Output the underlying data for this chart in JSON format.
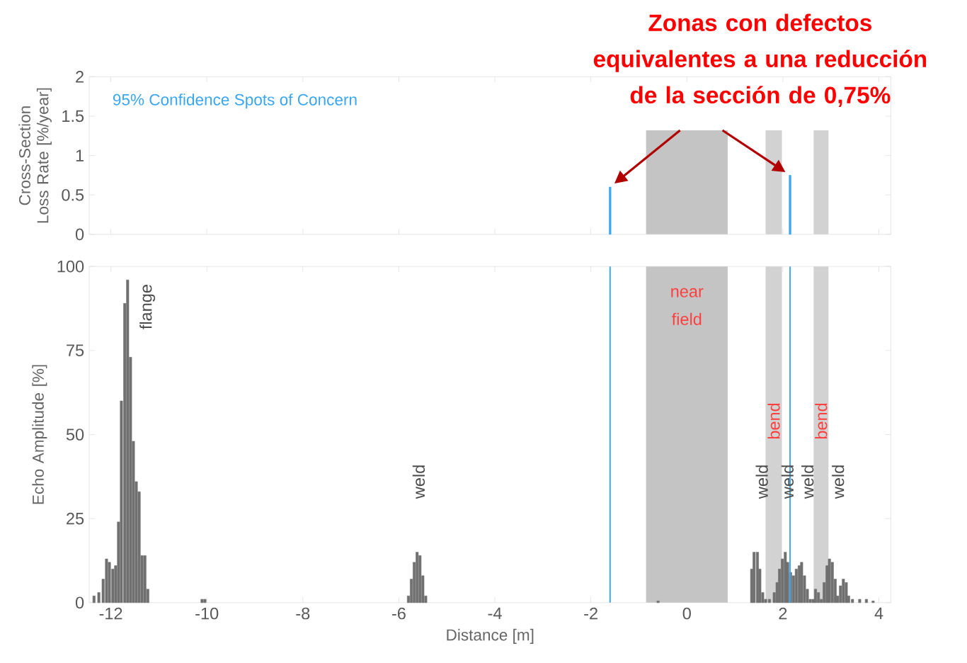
{
  "chart_data": [
    {
      "type": "bar",
      "ylabel": "Cross-Section Loss Rate [%/year]",
      "annotations": [
        "**Zonas con defectos equivalentes a una reducción de la sección de 0,75%**"
      ],
      "x": [
        -1.6,
        2.15
      ],
      "series": [
        {
          "name": "95% Confidence Spots of Concern",
          "color": "#3ba7f0",
          "values": [
            0.6,
            0.75
          ]
        }
      ],
      "xlim": [
        -12.45,
        4.25
      ],
      "ylim": [
        0,
        2
      ],
      "xticks": [
        -12,
        -10,
        -8,
        -6,
        -4,
        -2,
        0,
        2,
        4
      ],
      "yticks": [
        0,
        0.5,
        1,
        1.5,
        2
      ],
      "tick_labels": "y",
      "legend": "top left",
      "bands": [
        {
          "axis": "x",
          "from": -0.85,
          "to": 0.85,
          "color": "#c4c4c4"
        },
        {
          "axis": "x",
          "from": 1.64,
          "to": 1.98,
          "color": "#d2d2d2"
        },
        {
          "axis": "x",
          "from": 2.64,
          "to": 2.95,
          "color": "#d2d2d2"
        }
      ]
    },
    {
      "type": "bar",
      "xlabel": "Distance [m]",
      "ylabel": "Echo Amplitude [%]",
      "x": [
        -12.35,
        -12.25,
        -12.16,
        -12.09,
        -12.03,
        -11.96,
        -11.9,
        -11.84,
        -11.78,
        -11.71,
        -11.65,
        -11.59,
        -11.53,
        -11.47,
        -11.41,
        -11.35,
        -11.29,
        -11.23,
        -10.1,
        -10.04,
        -5.8,
        -5.74,
        -5.68,
        -5.62,
        -5.56,
        -5.5,
        -5.44,
        -0.6,
        1.35,
        1.4,
        1.47,
        1.52,
        1.58,
        1.64,
        1.72,
        1.82,
        1.88,
        1.93,
        1.99,
        2.05,
        2.1,
        2.16,
        2.22,
        2.28,
        2.34,
        2.39,
        2.45,
        2.51,
        2.57,
        2.63,
        2.68,
        2.74,
        2.8,
        2.86,
        2.92,
        2.97,
        3.03,
        3.09,
        3.14,
        3.2,
        3.26,
        3.32,
        3.37,
        3.45,
        3.6,
        3.74,
        3.88
      ],
      "values": [
        2,
        3,
        7,
        13,
        12,
        10,
        11,
        24,
        60,
        89,
        96,
        73,
        48,
        36,
        33,
        14,
        14,
        4,
        1,
        1,
        2,
        7,
        12,
        15,
        14,
        8,
        2,
        0.5,
        10,
        15,
        15,
        10,
        3,
        1,
        1,
        3,
        6,
        10,
        13,
        15,
        12,
        9,
        8,
        10,
        11,
        12,
        8,
        4,
        1,
        1,
        4,
        3,
        1,
        6,
        11,
        13,
        12,
        7,
        2,
        5,
        7,
        6,
        2,
        1,
        1,
        1,
        0.5
      ],
      "color": "#707070",
      "xlim": [
        -12.45,
        4.25
      ],
      "ylim": [
        0,
        100
      ],
      "xticks": [
        -12,
        -10,
        -8,
        -6,
        -4,
        -2,
        0,
        2,
        4
      ],
      "yticks": [
        0,
        25,
        50,
        75,
        100
      ],
      "ref_lines": [
        {
          "axis": "x",
          "value": -1.6,
          "color": "#3ba7f0"
        },
        {
          "axis": "x",
          "value": 2.15,
          "color": "#3ba7f0"
        }
      ],
      "bands": [
        {
          "axis": "x",
          "from": -0.85,
          "to": 0.85,
          "label": "near field",
          "color": "#c4c4c4"
        },
        {
          "axis": "x",
          "from": 1.64,
          "to": 1.98,
          "label": "bend",
          "color": "#d2d2d2"
        },
        {
          "axis": "x",
          "from": 2.64,
          "to": 2.95,
          "label": "bend",
          "color": "#d2d2d2"
        }
      ],
      "annotations": [
        "flange",
        "weld",
        "weld",
        "weld",
        "weld",
        "weld"
      ]
    }
  ]
}
